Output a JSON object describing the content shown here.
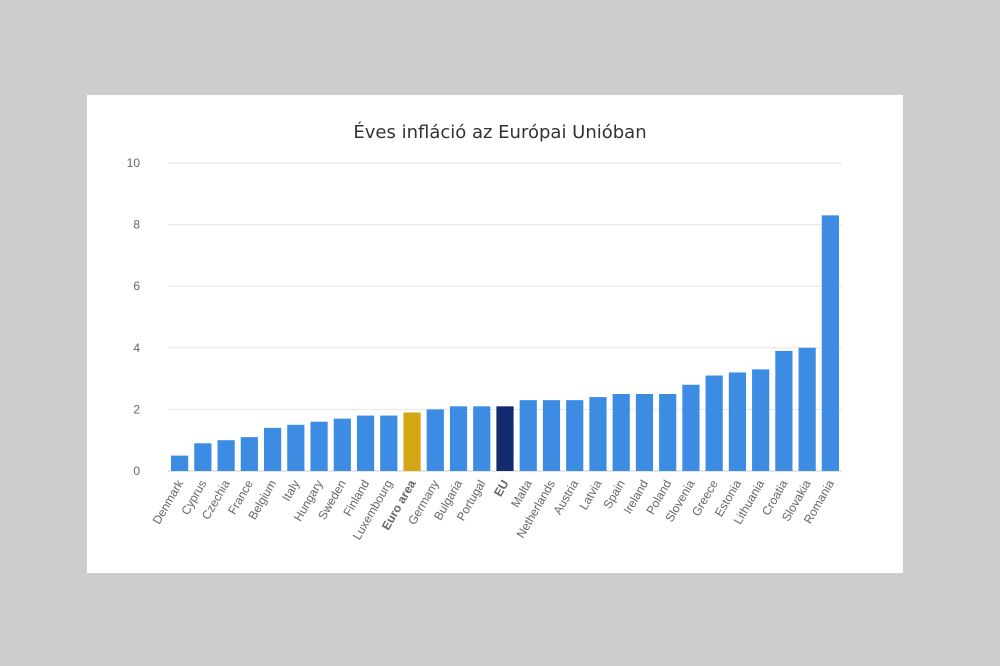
{
  "chart_data": {
    "type": "bar",
    "title": "Éves infláció az Európai Unióban",
    "categories": [
      "Denmark",
      "Cyprus",
      "Czechia",
      "France",
      "Belgium",
      "Italy",
      "Hungary",
      "Sweden",
      "Finland",
      "Luxembourg",
      "Euro area",
      "Germany",
      "Bulgaria",
      "Portugal",
      "EU",
      "Malta",
      "Netherlands",
      "Austria",
      "Latvia",
      "Spain",
      "Ireland",
      "Poland",
      "Slovenia",
      "Greece",
      "Estonia",
      "Lithuania",
      "Croatia",
      "Slovakia",
      "Romania"
    ],
    "values": [
      0.5,
      0.9,
      1.0,
      1.1,
      1.4,
      1.5,
      1.6,
      1.7,
      1.8,
      1.8,
      1.9,
      2.0,
      2.1,
      2.1,
      2.1,
      2.3,
      2.3,
      2.3,
      2.4,
      2.5,
      2.5,
      2.5,
      2.8,
      3.1,
      3.2,
      3.3,
      3.9,
      4.0,
      8.3
    ],
    "color": "#3c8ce4",
    "colors": [
      "#3c8ce4",
      "#3c8ce4",
      "#3c8ce4",
      "#3c8ce4",
      "#3c8ce4",
      "#3c8ce4",
      "#3c8ce4",
      "#3c8ce4",
      "#3c8ce4",
      "#3c8ce4",
      "#d4a514",
      "#3c8ce4",
      "#3c8ce4",
      "#3c8ce4",
      "#122b6f",
      "#3c8ce4",
      "#3c8ce4",
      "#3c8ce4",
      "#3c8ce4",
      "#3c8ce4",
      "#3c8ce4",
      "#3c8ce4",
      "#3c8ce4",
      "#3c8ce4",
      "#3c8ce4",
      "#3c8ce4",
      "#3c8ce4",
      "#3c8ce4",
      "#3c8ce4"
    ],
    "ylim": [
      0,
      10
    ],
    "yticks": [
      0,
      2,
      4,
      6,
      8,
      10
    ],
    "grid": true
  }
}
